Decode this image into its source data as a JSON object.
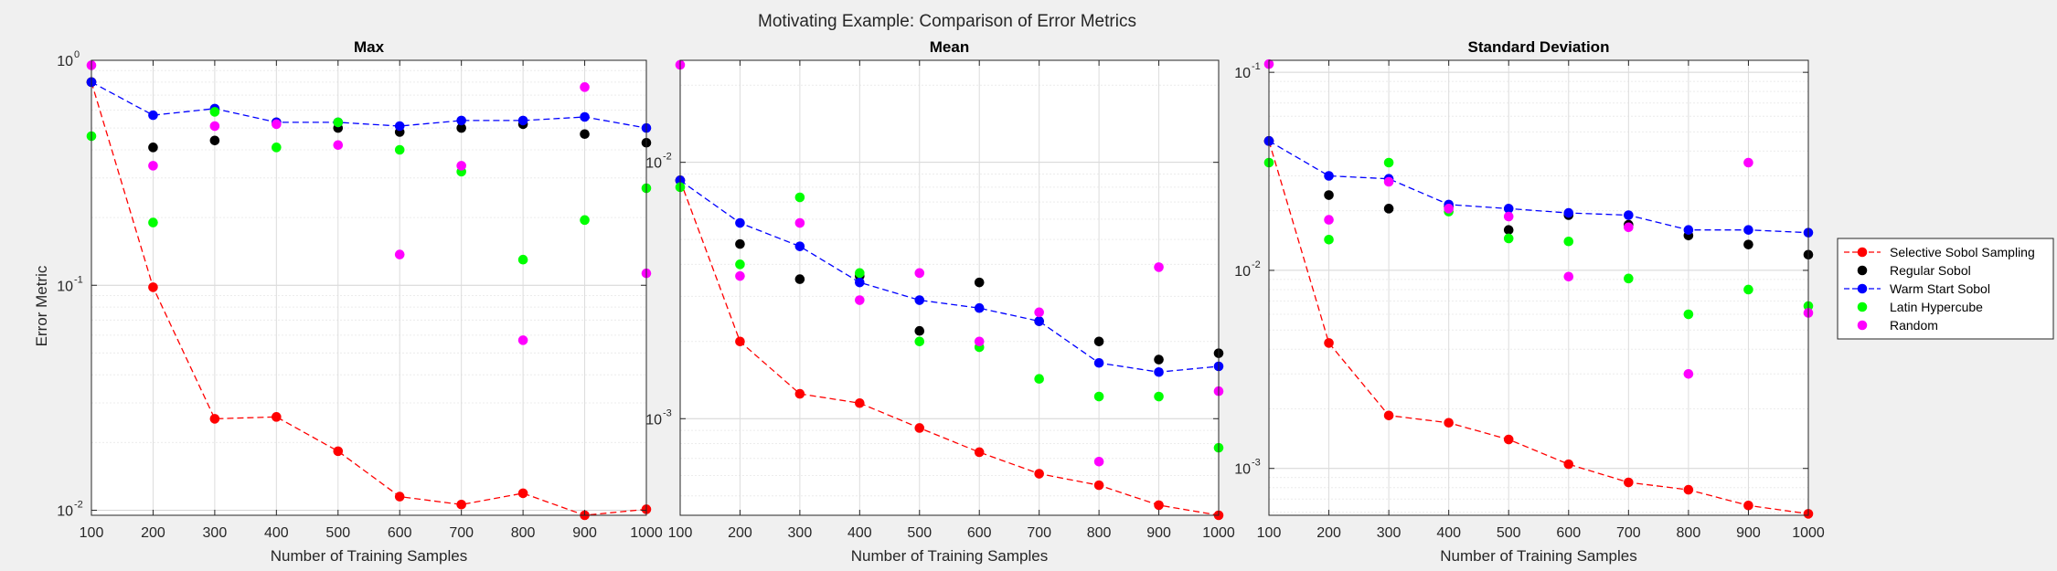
{
  "figure": {
    "suptitle": "Motivating Example: Comparison of Error Metrics",
    "ylabel": "Error Metric"
  },
  "legend": {
    "placement": "outside-right",
    "entries": [
      {
        "label": "Selective Sobol Sampling",
        "color": "#ff0000",
        "style": "dashed-line-marker"
      },
      {
        "label": "Regular Sobol",
        "color": "#000000",
        "style": "marker"
      },
      {
        "label": "Warm Start Sobol",
        "color": "#0000ff",
        "style": "dashed-line-marker"
      },
      {
        "label": "Latin Hypercube",
        "color": "#00ff00",
        "style": "marker"
      },
      {
        "label": "Random",
        "color": "#ff00ff",
        "style": "marker"
      }
    ]
  },
  "chart_data": [
    {
      "type": "scatter",
      "title": "Max",
      "xlabel": "Number of Training Samples",
      "ylabel": "Error Metric",
      "yscale": "log",
      "xlim": [
        100,
        1000
      ],
      "ylim": [
        0.0095,
        1.0
      ],
      "xticks": [
        "100",
        "200",
        "300",
        "400",
        "500",
        "600",
        "700",
        "800",
        "900",
        "1000"
      ],
      "yticks": [
        {
          "value": 0.01,
          "base": "10",
          "exp": "-2"
        },
        {
          "value": 0.1,
          "base": "10",
          "exp": "-1"
        },
        {
          "value": 1,
          "base": "10",
          "exp": "0"
        }
      ],
      "grid": true,
      "x": [
        100,
        200,
        300,
        400,
        500,
        600,
        700,
        800,
        900,
        1000
      ],
      "series": [
        {
          "name": "Selective Sobol Sampling",
          "color": "#ff0000",
          "line": true,
          "values": [
            0.8,
            0.098,
            0.0255,
            0.026,
            0.0183,
            0.0115,
            0.0106,
            0.0119,
            0.0095,
            0.0101
          ]
        },
        {
          "name": "Regular Sobol",
          "color": "#000000",
          "line": false,
          "values": [
            0.8,
            0.41,
            0.44,
            0.53,
            0.5,
            0.48,
            0.5,
            0.52,
            0.47,
            0.43
          ]
        },
        {
          "name": "Warm Start Sobol",
          "color": "#0000ff",
          "line": true,
          "values": [
            0.8,
            0.57,
            0.61,
            0.53,
            0.53,
            0.51,
            0.54,
            0.54,
            0.56,
            0.5
          ]
        },
        {
          "name": "Latin Hypercube",
          "color": "#00ff00",
          "line": false,
          "values": [
            0.46,
            0.19,
            0.59,
            0.41,
            0.53,
            0.4,
            0.32,
            0.13,
            0.195,
            0.27
          ]
        },
        {
          "name": "Random",
          "color": "#ff00ff",
          "line": false,
          "values": [
            0.95,
            0.34,
            0.51,
            0.52,
            0.42,
            0.137,
            0.34,
            0.057,
            0.76,
            0.113
          ]
        }
      ]
    },
    {
      "type": "scatter",
      "title": "Mean",
      "xlabel": "Number of Training Samples",
      "ylabel": "",
      "yscale": "log",
      "xlim": [
        100,
        1000
      ],
      "ylim": [
        0.00042,
        0.025
      ],
      "xticks": [
        "100",
        "200",
        "300",
        "400",
        "500",
        "600",
        "700",
        "800",
        "900",
        "1000"
      ],
      "yticks": [
        {
          "value": 0.001,
          "base": "10",
          "exp": "-3"
        },
        {
          "value": 0.01,
          "base": "10",
          "exp": "-2"
        }
      ],
      "grid": true,
      "x": [
        100,
        200,
        300,
        400,
        500,
        600,
        700,
        800,
        900,
        1000
      ],
      "series": [
        {
          "name": "Selective Sobol Sampling",
          "color": "#ff0000",
          "line": true,
          "values": [
            0.0085,
            0.002,
            0.00125,
            0.00115,
            0.00092,
            0.00074,
            0.00061,
            0.00055,
            0.00046,
            0.00042
          ]
        },
        {
          "name": "Regular Sobol",
          "color": "#000000",
          "line": false,
          "values": [
            0.0085,
            0.0048,
            0.0035,
            0.0036,
            0.0022,
            0.0034,
            0.0024,
            0.002,
            0.0017,
            0.0018
          ]
        },
        {
          "name": "Warm Start Sobol",
          "color": "#0000ff",
          "line": true,
          "values": [
            0.0085,
            0.0058,
            0.0047,
            0.0034,
            0.0029,
            0.0027,
            0.0024,
            0.00165,
            0.00152,
            0.0016
          ]
        },
        {
          "name": "Latin Hypercube",
          "color": "#00ff00",
          "line": false,
          "values": [
            0.008,
            0.004,
            0.0073,
            0.0037,
            0.002,
            0.0019,
            0.00143,
            0.00122,
            0.00122,
            0.00077
          ]
        },
        {
          "name": "Random",
          "color": "#ff00ff",
          "line": false,
          "values": [
            0.024,
            0.0036,
            0.0058,
            0.0029,
            0.0037,
            0.002,
            0.0026,
            0.00068,
            0.0039,
            0.00128
          ]
        }
      ]
    },
    {
      "type": "scatter",
      "title": "Standard Deviation",
      "xlabel": "Number of Training Samples",
      "ylabel": "",
      "yscale": "log",
      "xlim": [
        100,
        1000
      ],
      "ylim": [
        0.00058,
        0.115
      ],
      "xticks": [
        "100",
        "200",
        "300",
        "400",
        "500",
        "600",
        "700",
        "800",
        "900",
        "1000"
      ],
      "yticks": [
        {
          "value": 0.001,
          "base": "10",
          "exp": "-3"
        },
        {
          "value": 0.01,
          "base": "10",
          "exp": "-2"
        },
        {
          "value": 0.1,
          "base": "10",
          "exp": "-1"
        }
      ],
      "grid": true,
      "x": [
        100,
        200,
        300,
        400,
        500,
        600,
        700,
        800,
        900,
        1000
      ],
      "series": [
        {
          "name": "Selective Sobol Sampling",
          "color": "#ff0000",
          "line": true,
          "values": [
            0.045,
            0.0043,
            0.00185,
            0.0017,
            0.0014,
            0.00105,
            0.00085,
            0.00078,
            0.00065,
            0.00059
          ]
        },
        {
          "name": "Regular Sobol",
          "color": "#000000",
          "line": false,
          "values": [
            0.045,
            0.024,
            0.0205,
            0.021,
            0.016,
            0.019,
            0.017,
            0.015,
            0.0135,
            0.012
          ]
        },
        {
          "name": "Warm Start Sobol",
          "color": "#0000ff",
          "line": true,
          "values": [
            0.045,
            0.03,
            0.029,
            0.0215,
            0.0205,
            0.0195,
            0.019,
            0.016,
            0.016,
            0.0155
          ]
        },
        {
          "name": "Latin Hypercube",
          "color": "#00ff00",
          "line": false,
          "values": [
            0.035,
            0.0143,
            0.035,
            0.0198,
            0.0145,
            0.014,
            0.0091,
            0.006,
            0.008,
            0.0066
          ]
        },
        {
          "name": "Random",
          "color": "#ff00ff",
          "line": false,
          "values": [
            0.11,
            0.018,
            0.028,
            0.0205,
            0.0187,
            0.0093,
            0.0165,
            0.003,
            0.035,
            0.0061
          ]
        }
      ]
    }
  ]
}
